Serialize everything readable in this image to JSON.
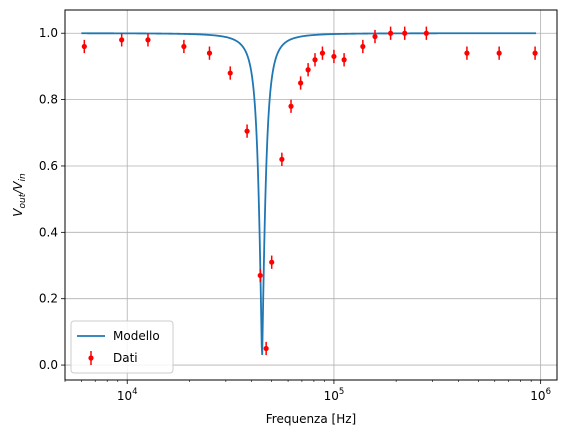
{
  "chart_data": {
    "type": "scatter",
    "xscale": "log",
    "xlim": [
      5000,
      1200000
    ],
    "ylim": [
      -0.045,
      1.07
    ],
    "grid": true,
    "xlabel": "Frequenza [Hz]",
    "ylabel": "V_out/V_in",
    "legend_placement": "lower-left",
    "x_ticks": [
      {
        "value": 10000,
        "base": "10",
        "exp": "4"
      },
      {
        "value": 100000,
        "base": "10",
        "exp": "5"
      },
      {
        "value": 1000000,
        "base": "10",
        "exp": "6"
      }
    ],
    "y_ticks": [
      {
        "value": 0.0,
        "label": "0.0"
      },
      {
        "value": 0.2,
        "label": "0.2"
      },
      {
        "value": 0.4,
        "label": "0.4"
      },
      {
        "value": 0.6,
        "label": "0.6"
      },
      {
        "value": 0.8,
        "label": "0.8"
      },
      {
        "value": 1.0,
        "label": "1.0"
      }
    ],
    "series": [
      {
        "name": "Modello",
        "kind": "line",
        "color": "#1f77b4",
        "model": {
          "f0": 44900,
          "delta": 5700,
          "fmin": 6000,
          "fmax": 950000
        }
      },
      {
        "name": "Dati",
        "kind": "errorbar",
        "color": "#ff0000",
        "points": [
          {
            "x": 6200,
            "y": 0.96,
            "err": 0.02
          },
          {
            "x": 9400,
            "y": 0.98,
            "err": 0.02
          },
          {
            "x": 12600,
            "y": 0.98,
            "err": 0.02
          },
          {
            "x": 18800,
            "y": 0.96,
            "err": 0.02
          },
          {
            "x": 25000,
            "y": 0.94,
            "err": 0.02
          },
          {
            "x": 31500,
            "y": 0.88,
            "err": 0.02
          },
          {
            "x": 38000,
            "y": 0.705,
            "err": 0.02
          },
          {
            "x": 44000,
            "y": 0.27,
            "err": 0.02
          },
          {
            "x": 47000,
            "y": 0.05,
            "err": 0.02
          },
          {
            "x": 50000,
            "y": 0.31,
            "err": 0.02
          },
          {
            "x": 56000,
            "y": 0.62,
            "err": 0.02
          },
          {
            "x": 62000,
            "y": 0.78,
            "err": 0.02
          },
          {
            "x": 69000,
            "y": 0.85,
            "err": 0.02
          },
          {
            "x": 75000,
            "y": 0.89,
            "err": 0.02
          },
          {
            "x": 81000,
            "y": 0.92,
            "err": 0.02
          },
          {
            "x": 88000,
            "y": 0.94,
            "err": 0.02
          },
          {
            "x": 100000,
            "y": 0.93,
            "err": 0.02
          },
          {
            "x": 112000,
            "y": 0.92,
            "err": 0.02
          },
          {
            "x": 138000,
            "y": 0.96,
            "err": 0.02
          },
          {
            "x": 158000,
            "y": 0.99,
            "err": 0.02
          },
          {
            "x": 188000,
            "y": 1.0,
            "err": 0.02
          },
          {
            "x": 220000,
            "y": 1.0,
            "err": 0.02
          },
          {
            "x": 280000,
            "y": 1.0,
            "err": 0.02
          },
          {
            "x": 440000,
            "y": 0.94,
            "err": 0.02
          },
          {
            "x": 630000,
            "y": 0.94,
            "err": 0.02
          },
          {
            "x": 940000,
            "y": 0.94,
            "err": 0.02
          }
        ]
      }
    ]
  }
}
